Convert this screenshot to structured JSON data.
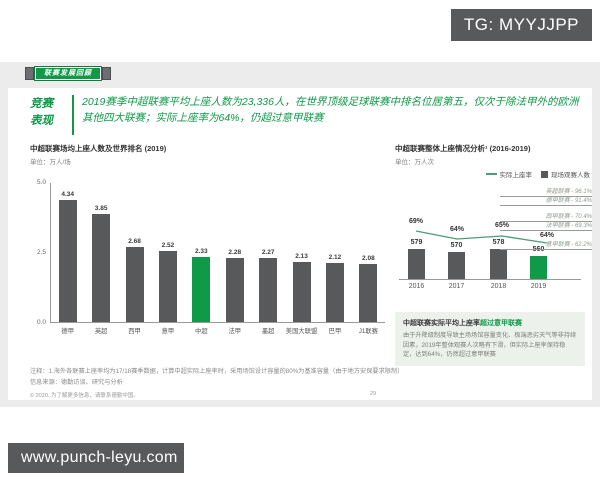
{
  "tg_badge": "TG: MYYJJPP",
  "watermark": "www.punch-leyu.com",
  "section_badge": "联赛发展回顾",
  "sidebar": {
    "line1": "竞赛",
    "line2": "表现"
  },
  "headline": "2019赛季中超联赛平均上座人数为23,336人，在世界顶级足球联赛中排名位居第五，仅次于除法甲外的欧洲其他四大联赛；实际上座率为64%，仍超过意甲联赛",
  "colors": {
    "green": "#0f9a48",
    "dark_gray": "#58595b",
    "band_gray": "#ececec",
    "line_green": "#4e9b77",
    "note_box_bg": "#edf1ec"
  },
  "chart_data": [
    {
      "type": "bar",
      "title": "中超联赛场均上座人数及世界排名 (2019)",
      "subtitle": "单位：万人/场",
      "categories": [
        "德甲",
        "英超",
        "西甲",
        "意甲",
        "中超",
        "法甲",
        "墨超",
        "美国大联盟",
        "巴甲",
        "J1联赛"
      ],
      "values": [
        4.34,
        3.85,
        2.68,
        2.52,
        2.33,
        2.28,
        2.27,
        2.13,
        2.12,
        2.08
      ],
      "highlight_index": 4,
      "highlight_category": "中超",
      "ylim": [
        0,
        5
      ],
      "yticks": [
        0.0,
        2.5,
        5.0
      ],
      "grid": false
    },
    {
      "type": "bar+line",
      "title": "中超联赛整体上座情况分析¹ (2016-2019)",
      "subtitle": "单位：万人次",
      "legend": [
        "实际上座率",
        "现场观赛人数"
      ],
      "legend_position": "top-right",
      "categories": [
        "2016",
        "2017",
        "2018",
        "2019"
      ],
      "series": [
        {
          "name": "现场观赛人数",
          "type": "bar",
          "values": [
            579,
            570,
            578,
            560
          ]
        },
        {
          "name": "实际上座率",
          "type": "line",
          "values": [
            "69%",
            "64%",
            "65%",
            "64%"
          ]
        }
      ],
      "highlight_index": 3,
      "annotations": [
        "英超联赛 - 96.1%",
        "德甲联赛 - 91.4%",
        "西甲联赛 - 70.4%",
        "法甲联赛 - 69.3%",
        "意甲联赛 - 62.2%"
      ]
    }
  ],
  "note_box": {
    "title_dark": "中超联赛实际平均上座率",
    "title_green": "超过意甲联赛",
    "body": "由于升降级制度导致主场场馆容量变化、极端恶劣天气等非持续因素，2019年整体观赛人次略有下滑，但实际上座率保持稳定，达到64%，仍然超过意甲联赛"
  },
  "footnotes": {
    "note": "注释：1.海外各联赛上座率均为17/18赛季数据，计算中超实际上座率时，采用场馆设计容量的80%为基准容量（由于地方安保要求限制）",
    "source": "信息来源：德勤访谈、研究与分析"
  },
  "footer": {
    "copyright": "© 2020. 为了解更多信息，请联系德勤中国。",
    "page_number": "29"
  }
}
